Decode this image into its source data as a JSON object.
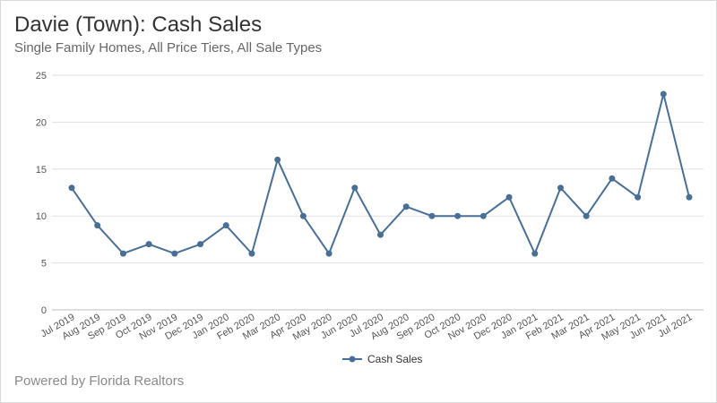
{
  "header": {
    "title": "Davie (Town): Cash Sales",
    "subtitle": "Single Family Homes, All Price Tiers, All Sale Types"
  },
  "footer": {
    "text": "Powered by Florida Realtors"
  },
  "chart_data": {
    "type": "line",
    "title": "Davie (Town): Cash Sales",
    "subtitle": "Single Family Homes, All Price Tiers, All Sale Types",
    "xlabel": "",
    "ylabel": "",
    "ylim": [
      0,
      25
    ],
    "yticks": [
      0,
      5,
      10,
      15,
      20,
      25
    ],
    "grid": true,
    "legend_position": "bottom",
    "line_color": "#4a6f94",
    "categories": [
      "Jul 2019",
      "Aug 2019",
      "Sep 2019",
      "Oct 2019",
      "Nov 2019",
      "Dec 2019",
      "Jan 2020",
      "Feb 2020",
      "Mar 2020",
      "Apr 2020",
      "May 2020",
      "Jun 2020",
      "Jul 2020",
      "Aug 2020",
      "Sep 2020",
      "Oct 2020",
      "Nov 2020",
      "Dec 2020",
      "Jan 2021",
      "Feb 2021",
      "Mar 2021",
      "Apr 2021",
      "May 2021",
      "Jun 2021",
      "Jul 2021"
    ],
    "series": [
      {
        "name": "Cash Sales",
        "values": [
          13,
          9,
          6,
          7,
          6,
          7,
          9,
          6,
          16,
          10,
          6,
          13,
          8,
          11,
          10,
          10,
          10,
          12,
          6,
          13,
          10,
          14,
          12,
          23,
          12
        ]
      }
    ]
  }
}
